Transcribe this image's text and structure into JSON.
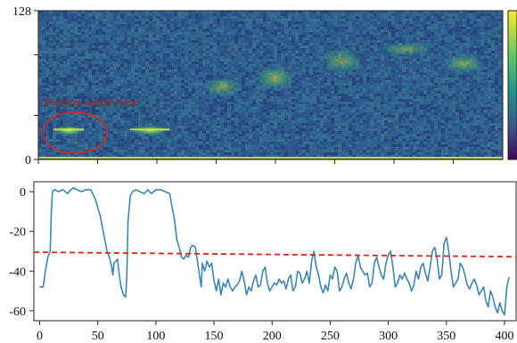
{
  "chart_data": [
    {
      "type": "heatmap",
      "title": "",
      "xlabel": "",
      "ylabel": "",
      "ylim": [
        0,
        128
      ],
      "y_tick_labels": [
        "128",
        "0"
      ],
      "colormap": "viridis",
      "annotation": {
        "text": "Positive sound event",
        "color": "#d01010",
        "marker": "ellipse"
      },
      "events": [
        {
          "x_range": [
            12,
            38
          ],
          "band": [
            22,
            28
          ],
          "intensity": 0.95
        },
        {
          "x_range": [
            78,
            112
          ],
          "band": [
            22,
            28
          ],
          "intensity": 0.9
        },
        {
          "x_range": [
            140,
            175
          ],
          "band": [
            55,
            70
          ],
          "intensity": 0.5
        },
        {
          "x_range": [
            185,
            220
          ],
          "band": [
            60,
            80
          ],
          "intensity": 0.55
        },
        {
          "x_range": [
            240,
            280
          ],
          "band": [
            75,
            95
          ],
          "intensity": 0.45
        },
        {
          "x_range": [
            290,
            340
          ],
          "band": [
            90,
            100
          ],
          "intensity": 0.45
        },
        {
          "x_range": [
            345,
            385
          ],
          "band": [
            75,
            90
          ],
          "intensity": 0.5
        }
      ]
    },
    {
      "type": "line",
      "title": "",
      "xlabel": "",
      "ylabel": "",
      "xlim": [
        -5,
        410
      ],
      "ylim": [
        -65,
        5
      ],
      "x_ticks": [
        0,
        50,
        100,
        150,
        200,
        250,
        300,
        350,
        400
      ],
      "y_ticks": [
        0,
        -20,
        -40,
        -60
      ],
      "grid": false,
      "series": [
        {
          "color": "#3a86b8",
          "style": "solid",
          "points": [
            [
              0,
              -48
            ],
            [
              3,
              -48
            ],
            [
              5,
              -40
            ],
            [
              7,
              -33
            ],
            [
              9,
              -30
            ],
            [
              10,
              -10
            ],
            [
              11,
              0
            ],
            [
              13,
              1
            ],
            [
              16,
              0
            ],
            [
              20,
              1
            ],
            [
              24,
              -1
            ],
            [
              27,
              1
            ],
            [
              29,
              2
            ],
            [
              32,
              1
            ],
            [
              36,
              0
            ],
            [
              40,
              1
            ],
            [
              44,
              1
            ],
            [
              48,
              -4
            ],
            [
              52,
              -12
            ],
            [
              56,
              -24
            ],
            [
              58,
              -30
            ],
            [
              60,
              -33
            ],
            [
              62,
              -38
            ],
            [
              63,
              -42
            ],
            [
              64,
              -36
            ],
            [
              67,
              -34
            ],
            [
              68,
              -40
            ],
            [
              70,
              -48
            ],
            [
              72,
              -52
            ],
            [
              74,
              -53
            ],
            [
              75,
              -42
            ],
            [
              76,
              -15
            ],
            [
              78,
              -2
            ],
            [
              80,
              0
            ],
            [
              83,
              1
            ],
            [
              86,
              0
            ],
            [
              90,
              -1
            ],
            [
              93,
              1
            ],
            [
              96,
              -1
            ],
            [
              100,
              1
            ],
            [
              104,
              1
            ],
            [
              108,
              0
            ],
            [
              112,
              -1
            ],
            [
              114,
              -8
            ],
            [
              116,
              -14
            ],
            [
              118,
              -24
            ],
            [
              120,
              -28
            ],
            [
              122,
              -33
            ],
            [
              124,
              -34
            ],
            [
              126,
              -32
            ],
            [
              128,
              -33
            ],
            [
              130,
              -28
            ],
            [
              132,
              -27
            ],
            [
              134,
              -28
            ],
            [
              136,
              -36
            ],
            [
              138,
              -44
            ],
            [
              139,
              -48
            ],
            [
              140,
              -36
            ],
            [
              142,
              -40
            ],
            [
              144,
              -35
            ],
            [
              146,
              -38
            ],
            [
              148,
              -36
            ],
            [
              150,
              -45
            ],
            [
              152,
              -50
            ],
            [
              154,
              -44
            ],
            [
              156,
              -52
            ],
            [
              158,
              -46
            ],
            [
              160,
              -48
            ],
            [
              162,
              -44
            ],
            [
              164,
              -48
            ],
            [
              166,
              -50
            ],
            [
              168,
              -48
            ],
            [
              170,
              -47
            ],
            [
              172,
              -45
            ],
            [
              174,
              -40
            ],
            [
              176,
              -45
            ],
            [
              178,
              -52
            ],
            [
              180,
              -48
            ],
            [
              182,
              -50
            ],
            [
              184,
              -45
            ],
            [
              186,
              -42
            ],
            [
              188,
              -48
            ],
            [
              190,
              -47
            ],
            [
              192,
              -40
            ],
            [
              194,
              -38
            ],
            [
              196,
              -46
            ],
            [
              198,
              -50
            ],
            [
              200,
              -48
            ],
            [
              202,
              -46
            ],
            [
              204,
              -47
            ],
            [
              206,
              -44
            ],
            [
              208,
              -46
            ],
            [
              210,
              -45
            ],
            [
              212,
              -49
            ],
            [
              214,
              -44
            ],
            [
              216,
              -42
            ],
            [
              218,
              -50
            ],
            [
              220,
              -48
            ],
            [
              222,
              -40
            ],
            [
              224,
              -41
            ],
            [
              226,
              -46
            ],
            [
              228,
              -44
            ],
            [
              230,
              -40
            ],
            [
              232,
              -46
            ],
            [
              234,
              -35
            ],
            [
              236,
              -30
            ],
            [
              238,
              -38
            ],
            [
              240,
              -42
            ],
            [
              242,
              -48
            ],
            [
              244,
              -51
            ],
            [
              246,
              -47
            ],
            [
              248,
              -50
            ],
            [
              250,
              -42
            ],
            [
              252,
              -44
            ],
            [
              254,
              -38
            ],
            [
              256,
              -40
            ],
            [
              258,
              -50
            ],
            [
              260,
              -48
            ],
            [
              262,
              -44
            ],
            [
              264,
              -41
            ],
            [
              266,
              -46
            ],
            [
              268,
              -49
            ],
            [
              270,
              -44
            ],
            [
              272,
              -36
            ],
            [
              274,
              -32
            ],
            [
              276,
              -38
            ],
            [
              278,
              -40
            ],
            [
              280,
              -42
            ],
            [
              282,
              -41
            ],
            [
              284,
              -48
            ],
            [
              286,
              -46
            ],
            [
              288,
              -36
            ],
            [
              290,
              -33
            ],
            [
              292,
              -38
            ],
            [
              294,
              -42
            ],
            [
              296,
              -44
            ],
            [
              298,
              -36
            ],
            [
              300,
              -32
            ],
            [
              302,
              -30
            ],
            [
              304,
              -38
            ],
            [
              306,
              -48
            ],
            [
              308,
              -46
            ],
            [
              310,
              -42
            ],
            [
              312,
              -44
            ],
            [
              314,
              -41
            ],
            [
              316,
              -44
            ],
            [
              318,
              -46
            ],
            [
              320,
              -50
            ],
            [
              322,
              -47
            ],
            [
              324,
              -40
            ],
            [
              326,
              -44
            ],
            [
              328,
              -38
            ],
            [
              330,
              -36
            ],
            [
              332,
              -41
            ],
            [
              334,
              -45
            ],
            [
              336,
              -38
            ],
            [
              338,
              -30
            ],
            [
              340,
              -28
            ],
            [
              342,
              -34
            ],
            [
              344,
              -44
            ],
            [
              346,
              -42
            ],
            [
              348,
              -26
            ],
            [
              350,
              -23
            ],
            [
              352,
              -30
            ],
            [
              354,
              -40
            ],
            [
              356,
              -48
            ],
            [
              358,
              -46
            ],
            [
              360,
              -44
            ],
            [
              362,
              -36
            ],
            [
              364,
              -38
            ],
            [
              366,
              -42
            ],
            [
              368,
              -47
            ],
            [
              370,
              -49
            ],
            [
              372,
              -46
            ],
            [
              374,
              -44
            ],
            [
              376,
              -47
            ],
            [
              378,
              -52
            ],
            [
              380,
              -50
            ],
            [
              382,
              -48
            ],
            [
              384,
              -55
            ],
            [
              386,
              -58
            ],
            [
              388,
              -50
            ],
            [
              390,
              -53
            ],
            [
              392,
              -58
            ],
            [
              394,
              -61
            ],
            [
              396,
              -56
            ],
            [
              398,
              -60
            ],
            [
              400,
              -62
            ],
            [
              402,
              -48
            ],
            [
              404,
              -43
            ]
          ]
        },
        {
          "color": "#e0241b",
          "style": "dashed",
          "points": [
            [
              -5,
              -30.5
            ],
            [
              410,
              -32.8
            ]
          ]
        }
      ]
    }
  ]
}
